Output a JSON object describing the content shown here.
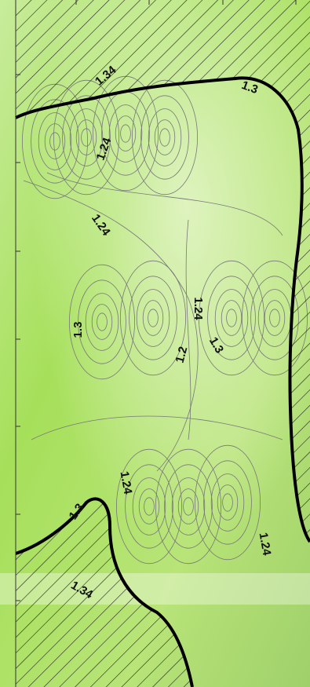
{
  "contours": {
    "labels": [
      1.34,
      1.3,
      1.24,
      1.24,
      1.3,
      1.24,
      1.3,
      1.2,
      1.24,
      1.3,
      1.24,
      1.34
    ]
  }
}
